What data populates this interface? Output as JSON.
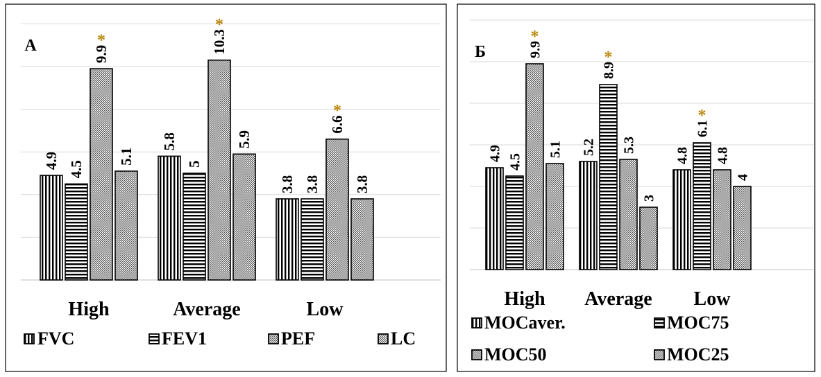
{
  "colors": {
    "ink": "#000000",
    "grid": "#d9d9d9",
    "star": "#b8860b",
    "bg": "#ffffff"
  },
  "chart_data": [
    {
      "type": "bar",
      "panel_label": "А",
      "categories": [
        "High",
        "Average",
        "Low"
      ],
      "ylim": [
        0,
        12
      ],
      "grid": true,
      "legend_position": "bottom",
      "series": [
        {
          "name": "FVC",
          "pattern": "vertical",
          "values": [
            4.9,
            5.8,
            3.8
          ],
          "labels": [
            "4.9",
            "5.8",
            "3.8"
          ]
        },
        {
          "name": "FEV1",
          "pattern": "horizontal",
          "values": [
            4.5,
            5.0,
            3.8
          ],
          "labels": [
            "4.5",
            "5",
            "3.8"
          ]
        },
        {
          "name": "PEF",
          "pattern": "dots",
          "values": [
            9.9,
            10.3,
            6.6
          ],
          "labels": [
            "9.9",
            "10.3",
            "6.6"
          ],
          "starred": [
            true,
            true,
            true
          ]
        },
        {
          "name": "LC",
          "pattern": "dots",
          "values": [
            5.1,
            5.9,
            3.8
          ],
          "labels": [
            "5.1",
            "5.9",
            "3.8"
          ]
        }
      ],
      "annotation_marker": "*"
    },
    {
      "type": "bar",
      "panel_label": "Б",
      "categories": [
        "High",
        "Average",
        "Low"
      ],
      "ylim": [
        0,
        12
      ],
      "grid": true,
      "legend_position": "bottom",
      "series": [
        {
          "name": "MOCaver.",
          "pattern": "vertical",
          "values": [
            4.9,
            5.2,
            4.8
          ],
          "labels": [
            "4.9",
            "5.2",
            "4.8"
          ]
        },
        {
          "name": "MOC75",
          "pattern": "horizontal",
          "values": [
            4.5,
            8.9,
            6.1
          ],
          "labels": [
            "4.5",
            "8.9",
            "6.1"
          ],
          "starred": [
            false,
            true,
            true
          ]
        },
        {
          "name": "MOC50",
          "pattern": "dots",
          "values": [
            9.9,
            5.3,
            4.8
          ],
          "labels": [
            "9.9",
            "5.3",
            "4.8"
          ],
          "starred": [
            true,
            false,
            false
          ]
        },
        {
          "name": "MOC25",
          "pattern": "dots",
          "values": [
            5.1,
            3.0,
            4.0
          ],
          "labels": [
            "5.1",
            "3",
            "4"
          ]
        }
      ],
      "annotation_marker": "*"
    }
  ]
}
